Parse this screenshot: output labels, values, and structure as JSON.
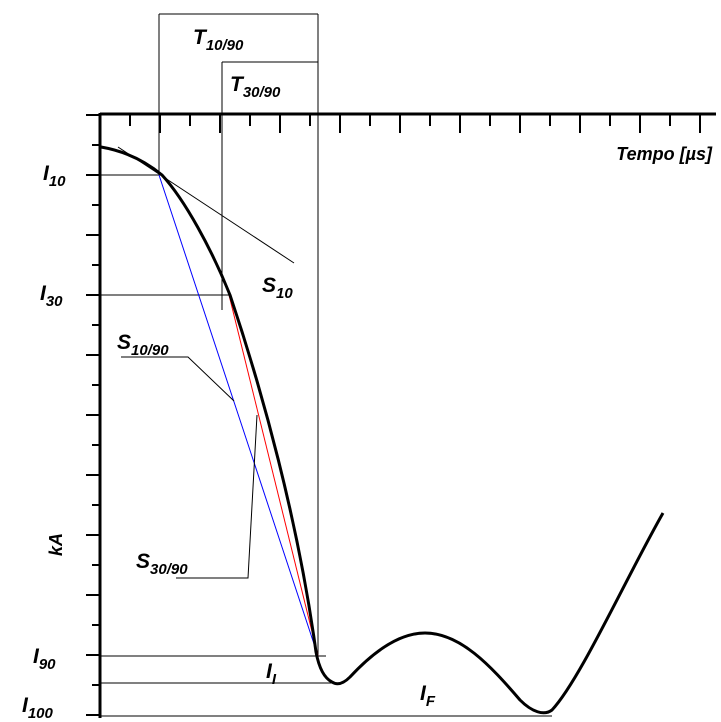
{
  "x_axis_label": "Tempo [µs]",
  "y_axis_label": "kA",
  "t_labels": {
    "t1090": {
      "main": "T",
      "sub": "10/90"
    },
    "t3090": {
      "main": "T",
      "sub": "30/90"
    }
  },
  "i_labels": {
    "i10": {
      "main": "I",
      "sub": "10"
    },
    "i30": {
      "main": "I",
      "sub": "30"
    },
    "i90": {
      "main": "I",
      "sub": "90"
    },
    "i100": {
      "main": "I",
      "sub": "100"
    }
  },
  "s_labels": {
    "s10": {
      "main": "S",
      "sub": "10"
    },
    "s1090": {
      "main": "S",
      "sub": "10/90"
    },
    "s3090": {
      "main": "S",
      "sub": "30/90"
    }
  },
  "peak_labels": {
    "ii": {
      "main": "I",
      "sub": "I"
    },
    "if": {
      "main": "I",
      "sub": "F"
    }
  },
  "colors": {
    "curve": "#000000",
    "s1090_line": "#0000ff",
    "s3090_line": "#ff0000",
    "guides": "#000000"
  }
}
